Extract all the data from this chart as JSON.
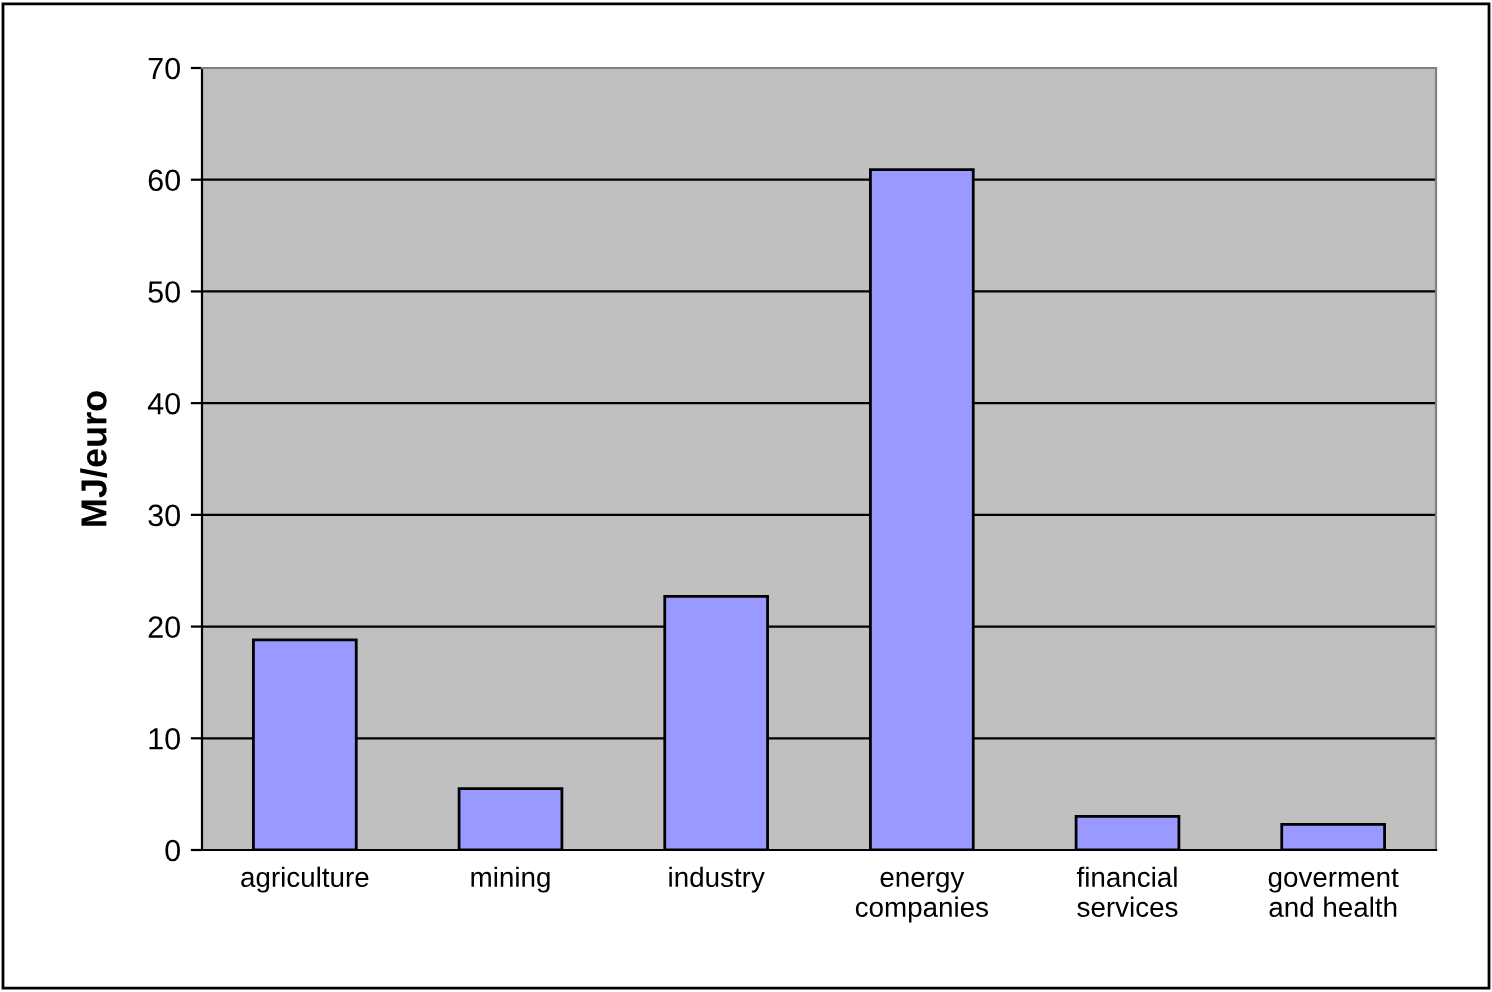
{
  "chart_data": {
    "type": "bar",
    "ylabel": "MJ/euro",
    "categories": [
      "agriculture",
      "mining",
      "industry",
      "energy\ncompanies",
      "financial\nservices",
      "goverment\nand health"
    ],
    "values": [
      18.8,
      5.5,
      22.7,
      60.9,
      3.0,
      2.3
    ],
    "color": "#9999ff",
    "ylim": [
      0,
      70
    ],
    "yticks": [
      0,
      10,
      20,
      30,
      40,
      50,
      60,
      70
    ],
    "grid": "y"
  }
}
